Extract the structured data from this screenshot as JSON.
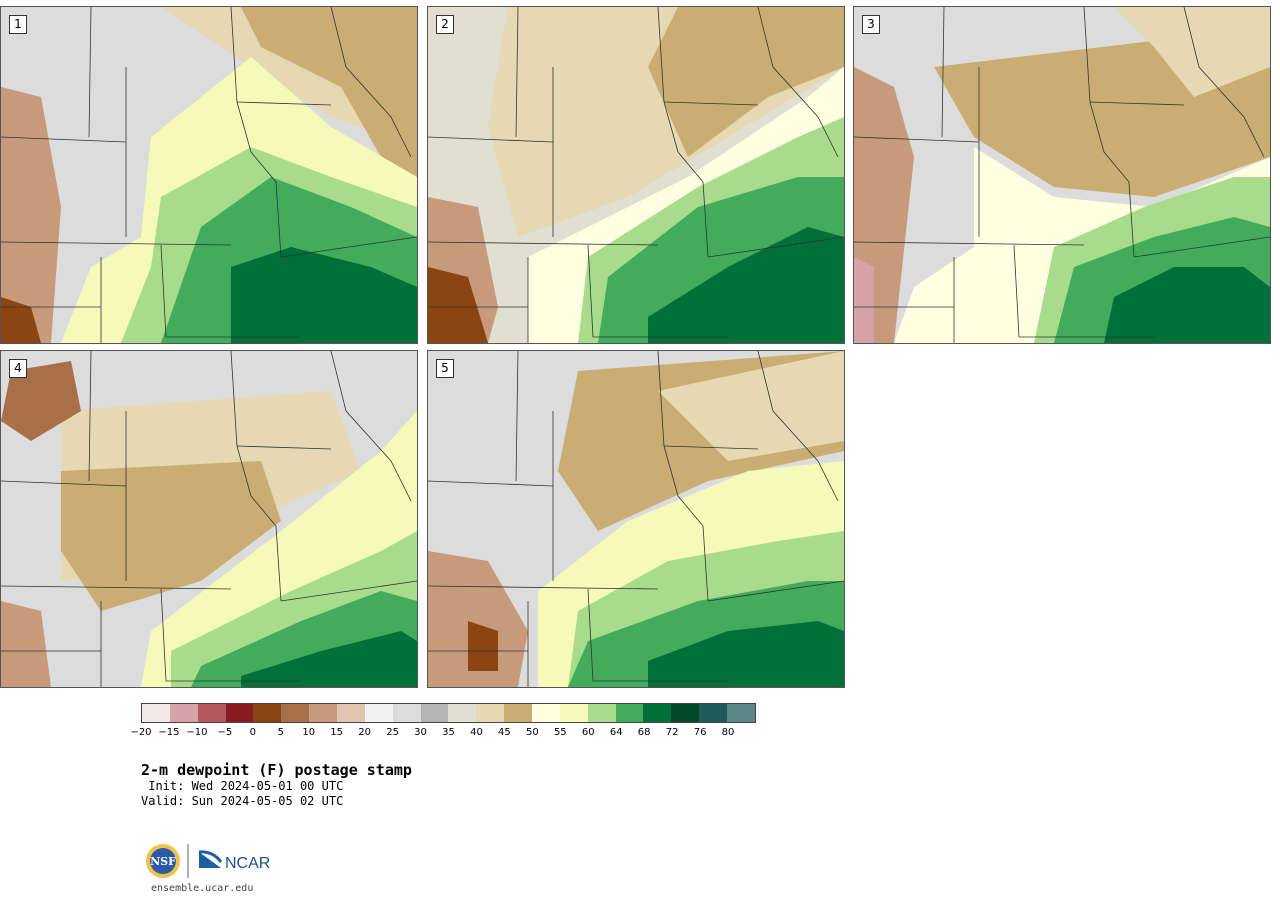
{
  "colors": {
    "palette": [
      "#f5e8ea",
      "#d8a3a8",
      "#b4585e",
      "#8a1a22",
      "#8b4513",
      "#a87048",
      "#c79a7c",
      "#e2c4b0",
      "#f2f2f2",
      "#dcdcdc",
      "#b4b4b4",
      "#e1dfd2",
      "#e6d8b2",
      "#c9ad72",
      "#ffffe2",
      "#f6fab9",
      "#a8dc8c",
      "#43ac5c",
      "#00703a",
      "#004b26",
      "#1f5a5a",
      "#5a8686"
    ]
  },
  "panels": [
    {
      "label": "1",
      "icon": "dewpoint-map",
      "base": "#dcdcdc",
      "blobs": [
        {
          "c": "#e6d8b2"
        },
        {
          "c": "#c9ad72"
        },
        {
          "c": "#f6fab9"
        },
        {
          "c": "#a8dc8c"
        },
        {
          "c": "#43ac5c"
        },
        {
          "c": "#00703a"
        },
        {
          "c": "#c79a7c"
        },
        {
          "c": "#8b4513"
        }
      ]
    },
    {
      "label": "2",
      "icon": "dewpoint-map",
      "base": "#e1dfd2",
      "blobs": [
        {
          "c": "#e6d8b2"
        },
        {
          "c": "#c9ad72"
        },
        {
          "c": "#ffffe2"
        },
        {
          "c": "#a8dc8c"
        },
        {
          "c": "#43ac5c"
        },
        {
          "c": "#00703a"
        },
        {
          "c": "#c79a7c"
        },
        {
          "c": "#8b4513"
        }
      ]
    },
    {
      "label": "3",
      "icon": "dewpoint-map",
      "base": "#dcdcdc",
      "blobs": [
        {
          "c": "#c9ad72"
        },
        {
          "c": "#e6d8b2"
        },
        {
          "c": "#ffffe2"
        },
        {
          "c": "#a8dc8c"
        },
        {
          "c": "#43ac5c"
        },
        {
          "c": "#00703a"
        },
        {
          "c": "#c79a7c"
        },
        {
          "c": "#d8a3a8"
        }
      ]
    },
    {
      "label": "4",
      "icon": "dewpoint-map",
      "base": "#dcdcdc",
      "blobs": [
        {
          "c": "#e6d8b2"
        },
        {
          "c": "#c9ad72"
        },
        {
          "c": "#f6fab9"
        },
        {
          "c": "#a8dc8c"
        },
        {
          "c": "#43ac5c"
        },
        {
          "c": "#00703a"
        },
        {
          "c": "#c79a7c"
        },
        {
          "c": "#a87048"
        }
      ]
    },
    {
      "label": "5",
      "icon": "dewpoint-map",
      "base": "#dcdcdc",
      "blobs": [
        {
          "c": "#c9ad72"
        },
        {
          "c": "#e6d8b2"
        },
        {
          "c": "#f6fab9"
        },
        {
          "c": "#a8dc8c"
        },
        {
          "c": "#43ac5c"
        },
        {
          "c": "#00703a"
        },
        {
          "c": "#c79a7c"
        },
        {
          "c": "#8b4513"
        }
      ]
    }
  ],
  "colorbar": {
    "ticks": [
      "-20",
      "-15",
      "-10",
      "-5",
      "0",
      "5",
      "10",
      "15",
      "20",
      "25",
      "30",
      "35",
      "40",
      "45",
      "50",
      "55",
      "60",
      "64",
      "68",
      "72",
      "76",
      "80"
    ]
  },
  "title": "2-m dewpoint (F) postage stamp",
  "init": " Init: Wed 2024-05-01 00 UTC",
  "valid": "Valid: Sun 2024-05-05 02 UTC",
  "logos": {
    "nsf": "NSF",
    "ncar": "NCAR"
  },
  "url": "ensemble.ucar.edu"
}
